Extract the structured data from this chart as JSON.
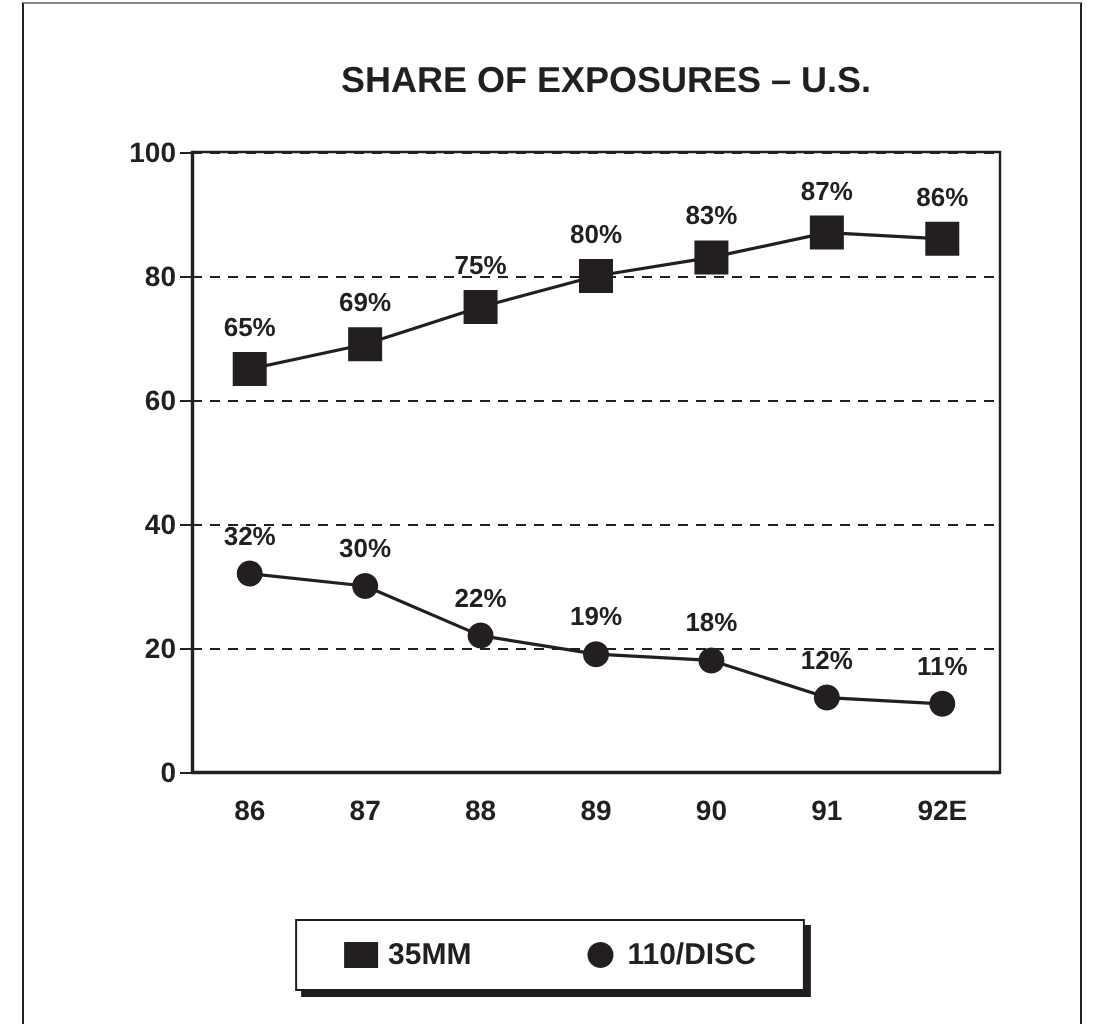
{
  "chart_data": {
    "type": "line",
    "title": "SHARE OF EXPOSURES – U.S.",
    "categories": [
      "86",
      "87",
      "88",
      "89",
      "90",
      "91",
      "92E"
    ],
    "series": [
      {
        "name": "35MM",
        "color": "#231f20",
        "marker": "square",
        "values": [
          65,
          69,
          75,
          80,
          83,
          87,
          86
        ],
        "value_labels": [
          "65%",
          "69%",
          "75%",
          "80%",
          "83%",
          "87%",
          "86%"
        ]
      },
      {
        "name": "110/DISC",
        "color": "#231f20",
        "marker": "circle",
        "values": [
          32,
          30,
          22,
          19,
          18,
          12,
          11
        ],
        "value_labels": [
          "32%",
          "30%",
          "22%",
          "19%",
          "18%",
          "12%",
          "11%"
        ]
      }
    ],
    "ylim": [
      0,
      100
    ],
    "yticks": [
      0,
      20,
      40,
      60,
      80,
      100
    ],
    "grid": "y",
    "legend": "bottom",
    "line_style": "solid"
  }
}
